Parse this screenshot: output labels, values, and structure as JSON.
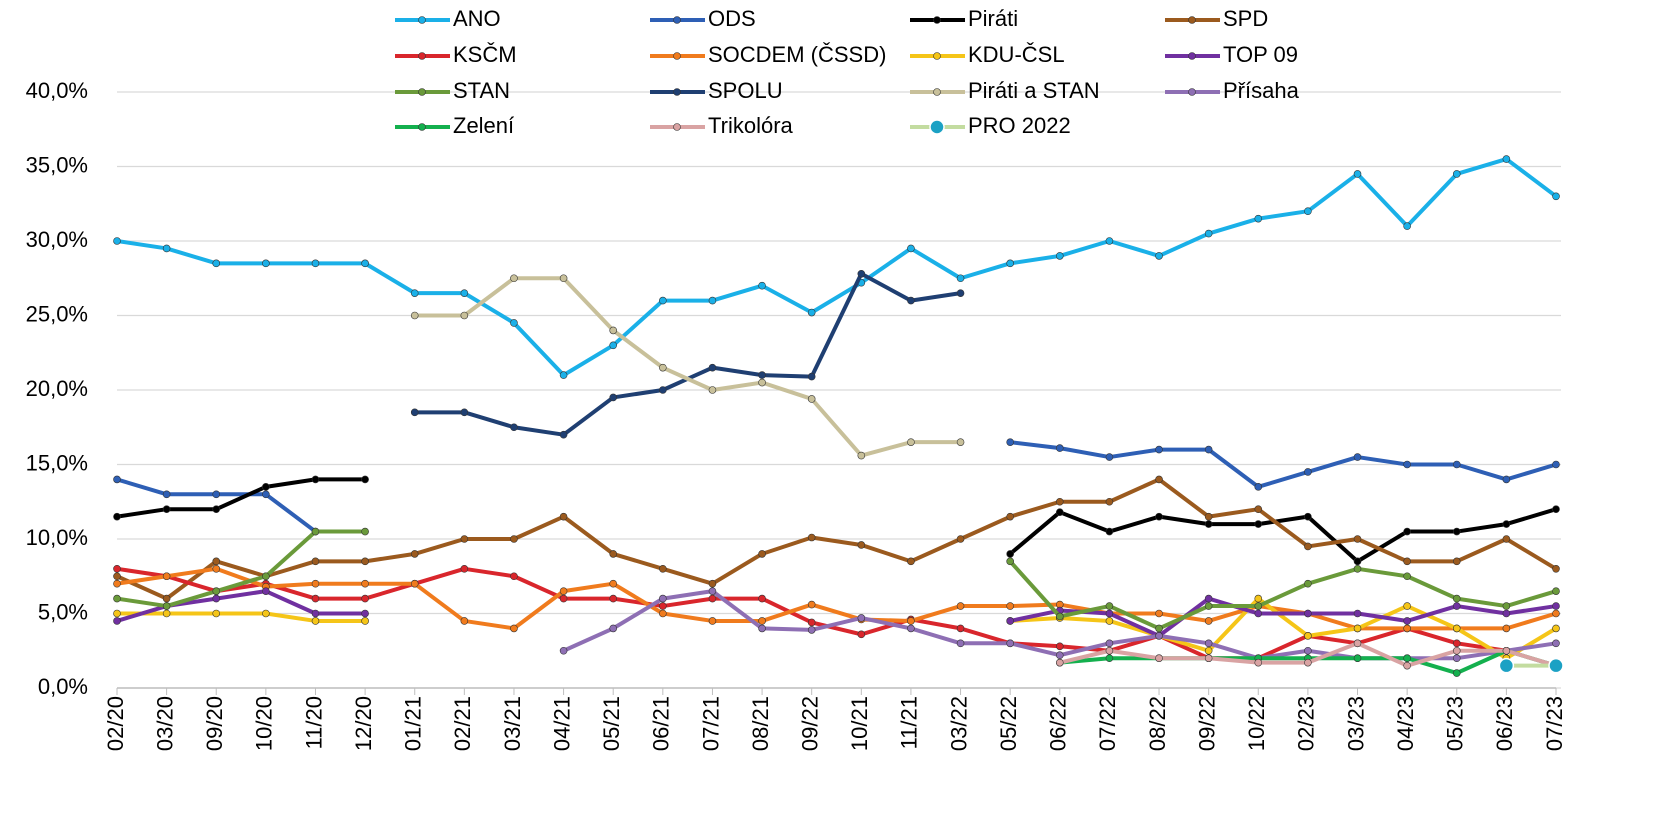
{
  "chart_data": {
    "type": "line",
    "categories": [
      "02/20",
      "03/20",
      "09/20",
      "10/20",
      "11/20",
      "12/20",
      "01/21",
      "02/21",
      "03/21",
      "04/21",
      "05/21",
      "06/21",
      "07/21",
      "08/21",
      "09/22",
      "10/21",
      "11/21",
      "03/22",
      "05/22",
      "06/22",
      "07/22",
      "08/22",
      "09/22",
      "10/22",
      "02/23",
      "03/23",
      "04/23",
      "05/23",
      "06/23",
      "07/23"
    ],
    "ylim": [
      0,
      40
    ],
    "yticks": [
      {
        "value": 0,
        "label": "0,0%"
      },
      {
        "value": 5,
        "label": "5,0%"
      },
      {
        "value": 10,
        "label": "10,0%"
      },
      {
        "value": 15,
        "label": "15,0%"
      },
      {
        "value": 20,
        "label": "20,0%"
      },
      {
        "value": 25,
        "label": "25,0%"
      },
      {
        "value": 30,
        "label": "30,0%"
      },
      {
        "value": 35,
        "label": "35,0%"
      },
      {
        "value": 40,
        "label": "40,0%"
      }
    ],
    "grid": true,
    "series": [
      {
        "name": "ANO",
        "color": "#1ab0e8",
        "values": [
          30,
          29.5,
          28.5,
          28.5,
          28.5,
          28.5,
          26.5,
          26.5,
          24.5,
          21,
          23,
          26,
          26,
          27,
          25.2,
          27.2,
          29.5,
          27.5,
          28.5,
          29,
          30,
          29,
          30.5,
          31.5,
          32,
          34.5,
          31,
          34.5,
          35.5,
          33
        ]
      },
      {
        "name": "ODS",
        "color": "#2e5fb5",
        "values": [
          14,
          13,
          13,
          13,
          10.5,
          null,
          null,
          null,
          null,
          null,
          null,
          null,
          null,
          null,
          null,
          null,
          null,
          null,
          16.5,
          16.1,
          15.5,
          16,
          16,
          13.5,
          14.5,
          15.5,
          15,
          15,
          14,
          15
        ]
      },
      {
        "name": "Piráti",
        "color": "#000000",
        "values": [
          11.5,
          12,
          12,
          13.5,
          14,
          14,
          null,
          null,
          null,
          null,
          null,
          null,
          null,
          null,
          null,
          null,
          null,
          null,
          9,
          11.8,
          10.5,
          11.5,
          11,
          11,
          11.5,
          8.5,
          10.5,
          10.5,
          11,
          12
        ]
      },
      {
        "name": "SPD",
        "color": "#9b5a1e",
        "values": [
          7.5,
          6,
          8.5,
          7.5,
          8.5,
          8.5,
          9,
          10,
          10,
          11.5,
          9,
          8,
          7,
          9,
          10.1,
          9.6,
          8.5,
          10,
          11.5,
          12.5,
          12.5,
          14,
          11.5,
          12,
          9.5,
          10,
          8.5,
          8.5,
          10,
          8
        ]
      },
      {
        "name": "KSČM",
        "color": "#d9262c",
        "values": [
          8,
          7.5,
          6.5,
          7,
          6,
          6,
          7,
          8,
          7.5,
          6,
          6,
          5.5,
          6,
          6,
          4.4,
          3.6,
          4.6,
          4,
          3,
          2.8,
          2.5,
          3.5,
          2,
          2,
          3.5,
          3,
          4,
          3,
          2.5,
          null
        ]
      },
      {
        "name": "SOCDEM (ČSSD)",
        "color": "#f07b1d",
        "values": [
          7,
          7.5,
          8,
          6.8,
          7,
          7,
          7,
          4.5,
          4,
          6.5,
          7,
          5,
          4.5,
          4.5,
          5.6,
          4.6,
          4.5,
          5.5,
          5.5,
          5.6,
          5,
          5,
          4.5,
          5.5,
          5,
          4,
          4,
          4,
          4,
          5
        ]
      },
      {
        "name": "KDU-ČSL",
        "color": "#f5c518",
        "values": [
          5,
          5,
          5,
          5,
          4.5,
          4.5,
          null,
          null,
          null,
          null,
          null,
          null,
          null,
          null,
          null,
          null,
          null,
          null,
          4.5,
          4.7,
          4.5,
          3.5,
          2.5,
          6,
          3.5,
          4,
          5.5,
          4,
          2,
          4
        ]
      },
      {
        "name": "TOP 09",
        "color": "#7030a0",
        "values": [
          4.5,
          5.5,
          6,
          6.5,
          5,
          5,
          null,
          null,
          null,
          null,
          null,
          null,
          null,
          null,
          null,
          null,
          null,
          null,
          4.5,
          5.2,
          5,
          3.5,
          6,
          5,
          5,
          5,
          4.5,
          5.5,
          5,
          5.5
        ]
      },
      {
        "name": "STAN",
        "color": "#6a9a3a",
        "values": [
          6,
          5.5,
          6.5,
          7.5,
          10.5,
          10.5,
          null,
          null,
          null,
          null,
          null,
          null,
          null,
          null,
          null,
          null,
          null,
          null,
          8.5,
          4.8,
          5.5,
          4,
          5.5,
          5.5,
          7,
          8,
          7.5,
          6,
          5.5,
          6.5
        ]
      },
      {
        "name": "SPOLU",
        "color": "#1f3f72",
        "values": [
          null,
          null,
          null,
          null,
          null,
          null,
          18.5,
          18.5,
          17.5,
          17,
          19.5,
          20,
          21.5,
          21,
          20.9,
          27.8,
          26,
          26.5,
          null,
          null,
          null,
          null,
          null,
          null,
          null,
          null,
          null,
          null,
          null,
          null
        ]
      },
      {
        "name": "Piráti a STAN",
        "color": "#c8c09a",
        "values": [
          null,
          null,
          null,
          null,
          null,
          null,
          25,
          25,
          27.5,
          27.5,
          24,
          21.5,
          20,
          20.5,
          19.4,
          15.6,
          16.5,
          16.5,
          null,
          null,
          null,
          null,
          null,
          null,
          null,
          null,
          null,
          null,
          null,
          null
        ]
      },
      {
        "name": "Přísaha",
        "color": "#8e6fb4",
        "values": [
          null,
          null,
          null,
          null,
          null,
          null,
          null,
          null,
          null,
          2.5,
          4,
          6,
          6.5,
          4,
          3.9,
          4.7,
          4,
          3,
          3,
          2.2,
          3,
          3.5,
          3,
          2,
          2.5,
          2,
          2,
          2,
          2.5,
          3
        ]
      },
      {
        "name": "Zelení",
        "color": "#14b04e",
        "values": [
          null,
          null,
          null,
          null,
          null,
          null,
          null,
          null,
          null,
          null,
          null,
          null,
          null,
          null,
          null,
          null,
          null,
          null,
          null,
          1.7,
          2,
          2,
          2,
          2,
          2,
          2,
          2,
          1,
          2.5,
          1.5
        ]
      },
      {
        "name": "Trikolóra",
        "color": "#d9a3a3",
        "values": [
          null,
          null,
          null,
          null,
          null,
          null,
          null,
          null,
          null,
          null,
          null,
          null,
          null,
          null,
          null,
          null,
          null,
          null,
          null,
          1.7,
          2.5,
          2,
          2,
          1.7,
          1.7,
          3,
          1.5,
          2.5,
          2.5,
          1.5
        ]
      },
      {
        "name": "PRO 2022",
        "color": "#c3dca0",
        "marker_color": "#1ba1c4",
        "values": [
          null,
          null,
          null,
          null,
          null,
          null,
          null,
          null,
          null,
          null,
          null,
          null,
          null,
          null,
          null,
          null,
          null,
          null,
          null,
          null,
          null,
          null,
          null,
          null,
          null,
          null,
          null,
          null,
          1.5,
          1.5
        ]
      }
    ]
  }
}
